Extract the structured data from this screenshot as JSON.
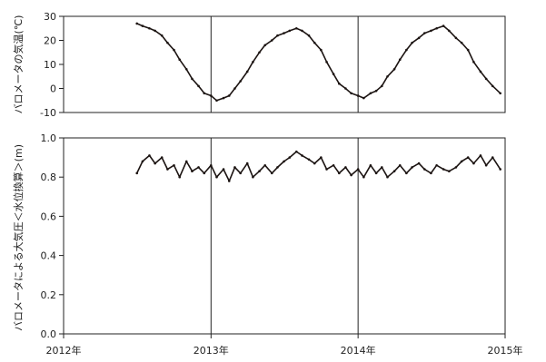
{
  "chart_data": [
    {
      "type": "line",
      "ylabel": "バロメータの気温(℃)",
      "xlim": [
        "2012-01-01",
        "2015-01-01"
      ],
      "ylim": [
        -10,
        30
      ],
      "yticks": [
        -10,
        0,
        10,
        20,
        30
      ],
      "vlines": [
        "2013-01-01",
        "2014-01-01"
      ],
      "grid": false,
      "series": [
        {
          "x": [
            "2012-07-01",
            "2012-07-15",
            "2012-08-01",
            "2012-08-15",
            "2012-09-01",
            "2012-09-15",
            "2012-10-01",
            "2012-10-15",
            "2012-11-01",
            "2012-11-15",
            "2012-12-01",
            "2012-12-15",
            "2013-01-01",
            "2013-01-15",
            "2013-02-01",
            "2013-02-15",
            "2013-03-01",
            "2013-03-15",
            "2013-04-01",
            "2013-04-15",
            "2013-05-01",
            "2013-05-15",
            "2013-06-01",
            "2013-06-15",
            "2013-07-01",
            "2013-07-15",
            "2013-08-01",
            "2013-08-15",
            "2013-09-01",
            "2013-09-15",
            "2013-10-01",
            "2013-10-15",
            "2013-11-01",
            "2013-11-15",
            "2013-12-01",
            "2013-12-15",
            "2014-01-01",
            "2014-01-15",
            "2014-02-01",
            "2014-02-15",
            "2014-03-01",
            "2014-03-15",
            "2014-04-01",
            "2014-04-15",
            "2014-05-01",
            "2014-05-15",
            "2014-06-01",
            "2014-06-15",
            "2014-07-01",
            "2014-07-15",
            "2014-08-01",
            "2014-08-15",
            "2014-09-01",
            "2014-09-15",
            "2014-10-01",
            "2014-10-15",
            "2014-11-01",
            "2014-11-15",
            "2014-12-01",
            "2014-12-20"
          ],
          "values": [
            27,
            26,
            25,
            24,
            22,
            19,
            16,
            12,
            8,
            4,
            1,
            -2,
            -3,
            -5,
            -4,
            -3,
            0,
            3,
            7,
            11,
            15,
            18,
            20,
            22,
            23,
            24,
            25,
            24,
            22,
            19,
            16,
            11,
            6,
            2,
            0,
            -2,
            -3,
            -4,
            -2,
            -1,
            1,
            5,
            8,
            12,
            16,
            19,
            21,
            23,
            24,
            25,
            26,
            24,
            21,
            19,
            16,
            11,
            7,
            4,
            1,
            -2
          ]
        }
      ]
    },
    {
      "type": "line",
      "ylabel": "バロメータによる大気圧＜水位換算＞(m)",
      "xlim": [
        "2012-01-01",
        "2015-01-01"
      ],
      "ylim": [
        0.0,
        1.0
      ],
      "yticks": [
        0.0,
        0.2,
        0.4,
        0.6,
        0.8,
        1.0
      ],
      "vlines": [
        "2013-01-01",
        "2014-01-01"
      ],
      "grid": false,
      "series": [
        {
          "x": [
            "2012-07-01",
            "2012-07-15",
            "2012-08-01",
            "2012-08-15",
            "2012-09-01",
            "2012-09-15",
            "2012-10-01",
            "2012-10-15",
            "2012-11-01",
            "2012-11-15",
            "2012-12-01",
            "2012-12-15",
            "2013-01-01",
            "2013-01-15",
            "2013-02-01",
            "2013-02-15",
            "2013-03-01",
            "2013-03-15",
            "2013-04-01",
            "2013-04-15",
            "2013-05-01",
            "2013-05-15",
            "2013-06-01",
            "2013-06-15",
            "2013-07-01",
            "2013-07-15",
            "2013-08-01",
            "2013-08-15",
            "2013-09-01",
            "2013-09-15",
            "2013-10-01",
            "2013-10-15",
            "2013-11-01",
            "2013-11-15",
            "2013-12-01",
            "2013-12-15",
            "2014-01-01",
            "2014-01-15",
            "2014-02-01",
            "2014-02-15",
            "2014-03-01",
            "2014-03-15",
            "2014-04-01",
            "2014-04-15",
            "2014-05-01",
            "2014-05-15",
            "2014-06-01",
            "2014-06-15",
            "2014-07-01",
            "2014-07-15",
            "2014-08-01",
            "2014-08-15",
            "2014-09-01",
            "2014-09-15",
            "2014-10-01",
            "2014-10-15",
            "2014-11-01",
            "2014-11-15",
            "2014-12-01",
            "2014-12-20"
          ],
          "values": [
            0.82,
            0.88,
            0.91,
            0.87,
            0.9,
            0.84,
            0.86,
            0.8,
            0.88,
            0.83,
            0.85,
            0.82,
            0.86,
            0.8,
            0.84,
            0.78,
            0.85,
            0.82,
            0.87,
            0.8,
            0.83,
            0.86,
            0.82,
            0.85,
            0.88,
            0.9,
            0.93,
            0.91,
            0.89,
            0.87,
            0.9,
            0.84,
            0.86,
            0.82,
            0.85,
            0.81,
            0.84,
            0.8,
            0.86,
            0.82,
            0.85,
            0.8,
            0.83,
            0.86,
            0.82,
            0.85,
            0.87,
            0.84,
            0.82,
            0.86,
            0.84,
            0.83,
            0.85,
            0.88,
            0.9,
            0.87,
            0.91,
            0.86,
            0.9,
            0.84
          ]
        }
      ]
    }
  ],
  "xaxis": {
    "ticks": [
      "2012-01-01",
      "2013-01-01",
      "2014-01-01",
      "2015-01-01"
    ],
    "tick_labels": [
      "2012年",
      "2013年",
      "2014年",
      "2015年"
    ]
  },
  "colors": {
    "line": "#1c1412",
    "axis": "#222222",
    "vline": "#222222"
  }
}
